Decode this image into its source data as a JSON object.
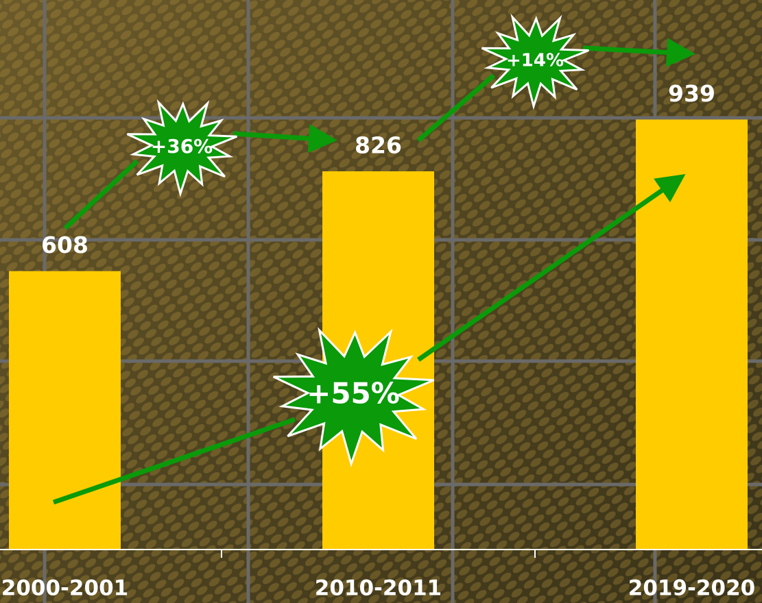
{
  "chart_data": {
    "type": "bar",
    "categories": [
      "2000-2001",
      "2010-2011",
      "2019-2020"
    ],
    "values": [
      608,
      826,
      939
    ],
    "color": "#ffcc00",
    "ylim": [
      0,
      1200
    ],
    "annotations": [
      "+36%",
      "+14%",
      "+55%"
    ]
  }
}
